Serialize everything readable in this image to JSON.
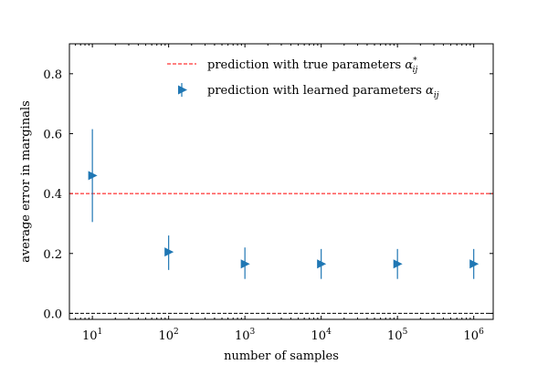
{
  "chart_data": {
    "type": "scatter",
    "title": "",
    "xlabel": "number of samples",
    "ylabel": "average error in marginals",
    "xscale": "log",
    "xlim": [
      5,
      1800000
    ],
    "ylim": [
      -0.02,
      0.9
    ],
    "grid": false,
    "legend_position": "top-right",
    "x_ticks": [
      {
        "value": 10,
        "base": "10",
        "exp": "1"
      },
      {
        "value": 100,
        "base": "10",
        "exp": "2"
      },
      {
        "value": 1000,
        "base": "10",
        "exp": "3"
      },
      {
        "value": 10000,
        "base": "10",
        "exp": "4"
      },
      {
        "value": 100000,
        "base": "10",
        "exp": "5"
      },
      {
        "value": 1000000,
        "base": "10",
        "exp": "6"
      }
    ],
    "y_ticks": [
      {
        "value": 0.0,
        "label": "0.0"
      },
      {
        "value": 0.2,
        "label": "0.2"
      },
      {
        "value": 0.4,
        "label": "0.4"
      },
      {
        "value": 0.6,
        "label": "0.6"
      },
      {
        "value": 0.8,
        "label": "0.8"
      }
    ],
    "reference_lines": [
      {
        "y": 0.4,
        "color": "#ff0000",
        "style": "dashed",
        "legend": "prediction with true parameters"
      },
      {
        "y": 0.0,
        "color": "#000000",
        "style": "dashed",
        "legend": ""
      }
    ],
    "series": [
      {
        "name": "prediction with learned parameters",
        "marker": "triangle-right",
        "color": "#1f77b4",
        "x": [
          10,
          100,
          1000,
          10000,
          100000,
          1000000
        ],
        "y": [
          0.46,
          0.205,
          0.165,
          0.165,
          0.165,
          0.165
        ],
        "yerr_low": [
          0.305,
          0.145,
          0.115,
          0.115,
          0.115,
          0.115
        ],
        "yerr_high": [
          0.615,
          0.26,
          0.22,
          0.215,
          0.215,
          0.215
        ]
      }
    ],
    "legend": [
      {
        "label": "prediction with true parameters ",
        "math_base": "α",
        "math_sup": "*",
        "math_sub": "ij",
        "style": "red-dashed"
      },
      {
        "label": "prediction with learned parameters ",
        "math_base": "α",
        "math_sup": "",
        "math_sub": "ij",
        "style": "blue-marker"
      }
    ]
  }
}
